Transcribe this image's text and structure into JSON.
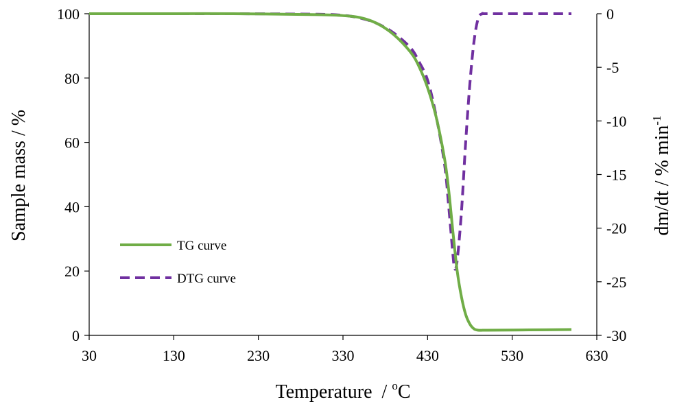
{
  "chart_data": {
    "type": "line",
    "xlabel": "Temperature  / ",
    "xlabel_unit_sup": "o",
    "xlabel_unit": "C",
    "ylabel": "Sample  mass  / %",
    "y2label": "dm/dt  / % min",
    "y2label_sup": "-1",
    "xlim": [
      30,
      630
    ],
    "ylim": [
      0,
      100
    ],
    "y2lim": [
      -30,
      0
    ],
    "xticks": [
      30,
      130,
      230,
      330,
      430,
      530,
      630
    ],
    "yticks": [
      0,
      20,
      40,
      60,
      80,
      100
    ],
    "y2ticks": [
      0,
      -5,
      -10,
      -15,
      -20,
      -25,
      -30
    ],
    "grid": false,
    "legend_position": "lower-left",
    "series": [
      {
        "name": "TG curve",
        "axis": "left",
        "color": "#70ad47",
        "style": "solid",
        "x": [
          30,
          100,
          200,
          300,
          330,
          350,
          370,
          390,
          410,
          420,
          430,
          440,
          450,
          455,
          460,
          465,
          470,
          475,
          480,
          485,
          490,
          495,
          500,
          550,
          600
        ],
        "y": [
          100,
          100,
          100,
          99.7,
          99.4,
          98.8,
          97,
          93.5,
          88,
          83.5,
          77,
          68,
          55,
          45,
          32,
          20,
          12,
          6.5,
          3.5,
          2,
          1.6,
          1.6,
          1.6,
          1.7,
          1.8
        ]
      },
      {
        "name": "DTG curve",
        "axis": "right",
        "color": "#7030a0",
        "style": "dashed",
        "x": [
          30,
          100,
          200,
          300,
          330,
          350,
          370,
          390,
          410,
          420,
          430,
          440,
          450,
          455,
          460,
          462,
          465,
          470,
          475,
          480,
          485,
          490,
          495,
          500,
          550,
          600
        ],
        "y": [
          0,
          0,
          0,
          -0.05,
          -0.15,
          -0.4,
          -0.9,
          -1.8,
          -3.2,
          -4.5,
          -6.2,
          -9.5,
          -14,
          -18,
          -22.5,
          -23.8,
          -23,
          -18.5,
          -12,
          -6.5,
          -2.5,
          -0.4,
          0,
          0,
          0,
          0
        ]
      }
    ]
  }
}
